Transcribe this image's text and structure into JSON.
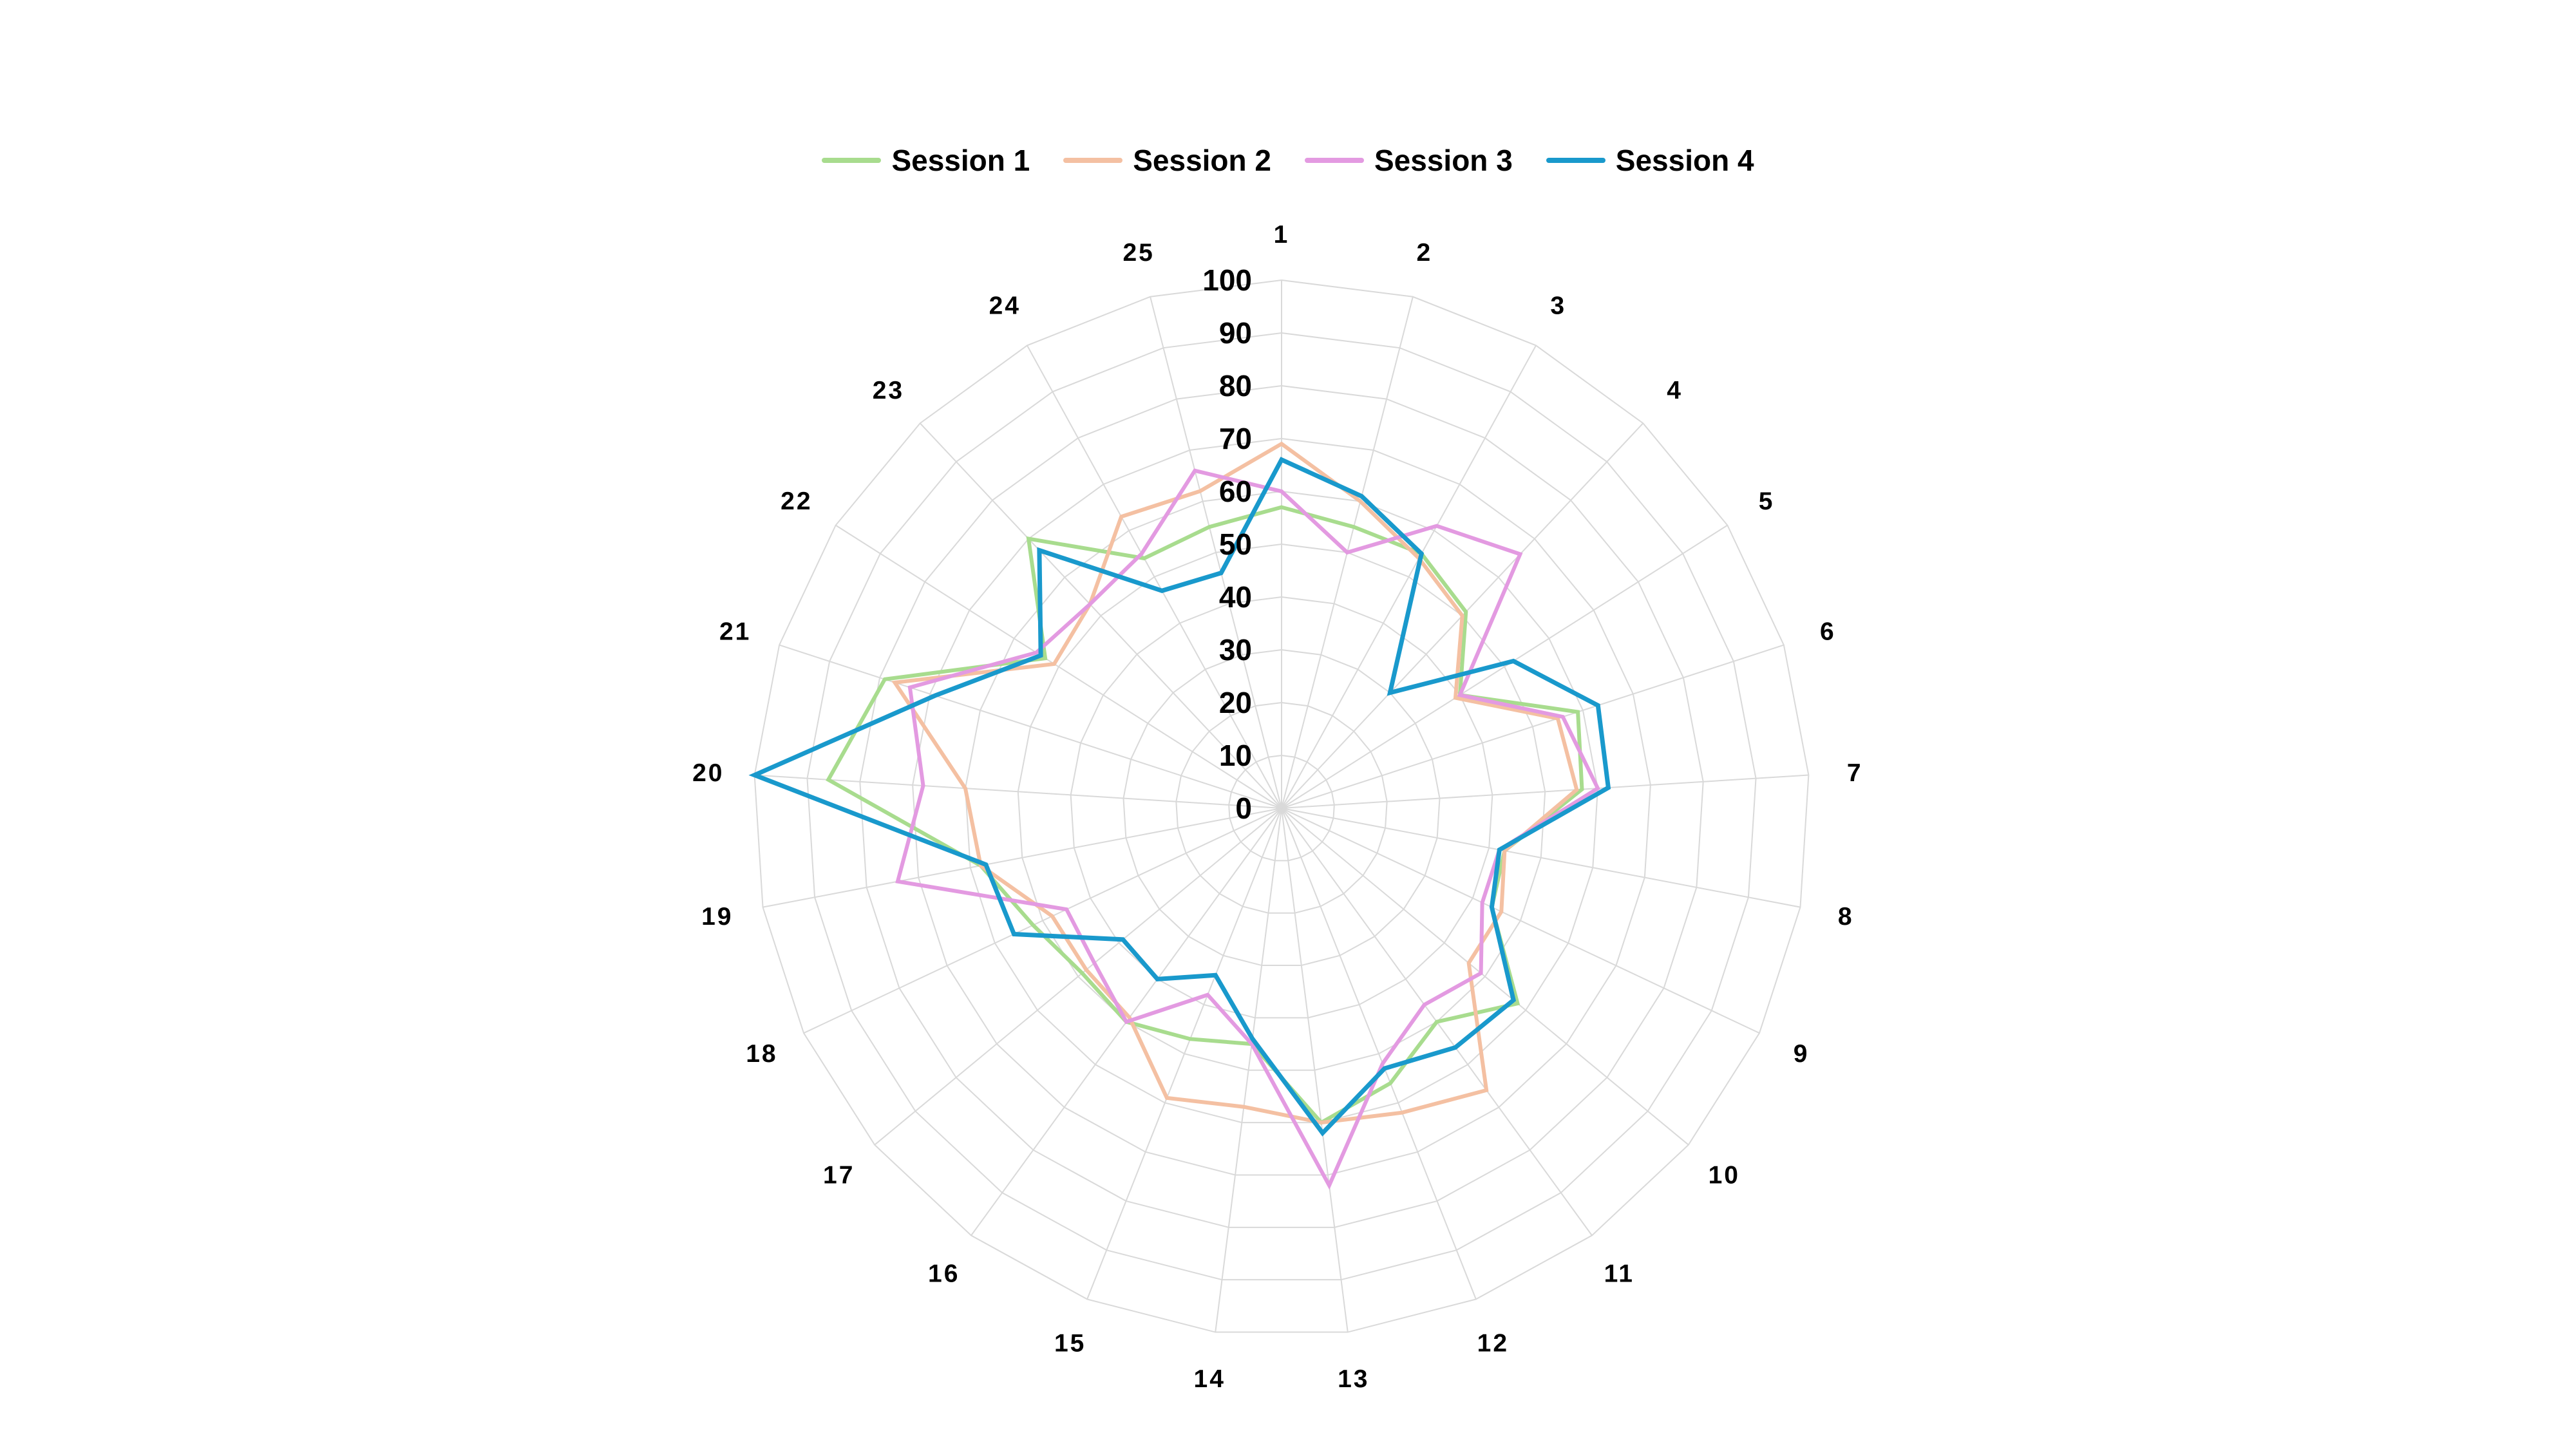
{
  "chart_data": {
    "type": "radar",
    "categories": [
      "1",
      "2",
      "3",
      "4",
      "5",
      "6",
      "7",
      "8",
      "9",
      "10",
      "11",
      "12",
      "13",
      "14",
      "15",
      "16",
      "17",
      "18",
      "19",
      "20",
      "21",
      "22",
      "23",
      "24",
      "25"
    ],
    "radial_ticks": [
      "0",
      "10",
      "20",
      "30",
      "40",
      "50",
      "60",
      "70",
      "80",
      "90",
      "100"
    ],
    "rlim": [
      0,
      100
    ],
    "grid": true,
    "legend_position": "top",
    "series": [
      {
        "name": "Session 1",
        "color": "#a8dc8e",
        "values": [
          57,
          55,
          55,
          51,
          40,
          59,
          57,
          43,
          44,
          58,
          50,
          56,
          60,
          45,
          47,
          50,
          49,
          52,
          58,
          86,
          79,
          53,
          70,
          54,
          55
        ]
      },
      {
        "name": "Session 2",
        "color": "#f4c0a2",
        "values": [
          69,
          60,
          54,
          50,
          39,
          55,
          56,
          43,
          46,
          46,
          66,
          62,
          60,
          57,
          59,
          49,
          48,
          48,
          58,
          60,
          77,
          51,
          53,
          63,
          62
        ]
      },
      {
        "name": "Session 3",
        "color": "#e39ae1",
        "values": [
          60,
          50,
          61,
          66,
          40,
          56,
          60,
          42,
          42,
          49,
          46,
          52,
          72,
          45,
          38,
          50,
          46,
          45,
          74,
          68,
          74,
          55,
          53,
          55,
          66
        ]
      },
      {
        "name": "Session 4",
        "color": "#1999cc",
        "values": [
          66,
          61,
          55,
          30,
          52,
          63,
          62,
          42,
          44,
          57,
          56,
          53,
          62,
          44,
          34,
          40,
          39,
          56,
          57,
          100,
          69,
          54,
          67,
          47,
          46
        ]
      }
    ]
  }
}
